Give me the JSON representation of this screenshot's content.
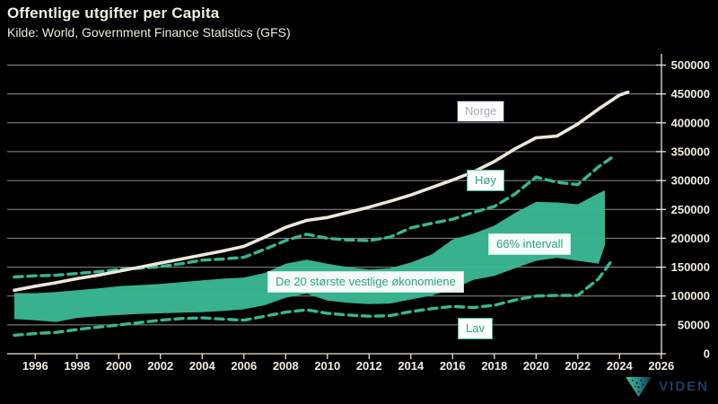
{
  "header": {
    "title": "Offentlige utgifter per Capita",
    "subtitle": "Kilde: World, Government Finance Statistics (GFS)"
  },
  "logo": {
    "text": "VIDEN"
  },
  "chart_data": {
    "type": "line",
    "title": "Offentlige utgifter per Capita",
    "source": "Kilde: World, Government Finance Statistics (GFS)",
    "grid": true,
    "legend_position": "inline-annotations",
    "x_axis": {
      "ticks": [
        1996,
        1998,
        2000,
        2002,
        2004,
        2006,
        2008,
        2010,
        2012,
        2014,
        2016,
        2018,
        2020,
        2022,
        2024,
        2026
      ]
    },
    "y_axis": {
      "ticks": [
        0,
        50000,
        100000,
        150000,
        200000,
        250000,
        300000,
        350000,
        400000,
        450000,
        500000
      ],
      "range": [
        0,
        500000
      ]
    },
    "colors": {
      "background": "#000000",
      "grid": "#8f8f8f",
      "axis": "#e9e5d7",
      "text": "#f0ece0",
      "norge_line": "#ece7d9",
      "band": "#3abb96",
      "dashed": "#35b892",
      "label_navy_border": "#363c59",
      "label_teal_text": "#2aa183",
      "logo_navy": "#1f3e63"
    },
    "annotations": [
      {
        "id": "norge",
        "text": "Norge"
      },
      {
        "id": "hoy",
        "text": "Høy"
      },
      {
        "id": "interval",
        "text": "66% intervall"
      },
      {
        "id": "economies",
        "text": "De 20 største vestlige økonomiene"
      },
      {
        "id": "lav",
        "text": "Lav"
      }
    ],
    "band": {
      "name": "66% intervall",
      "years": [
        1995,
        1996,
        1997,
        1998,
        1999,
        2000,
        2001,
        2002,
        2003,
        2004,
        2005,
        2006,
        2007,
        2008,
        2009,
        2010,
        2011,
        2012,
        2013,
        2014,
        2015,
        2016,
        2017,
        2018,
        2019,
        2020,
        2021,
        2022,
        2023,
        2023.3
      ],
      "top": [
        105000,
        105000,
        107000,
        110000,
        113000,
        117000,
        119000,
        121000,
        124000,
        127000,
        130000,
        132000,
        140000,
        156000,
        163000,
        156000,
        150000,
        146000,
        148000,
        158000,
        172000,
        198000,
        208000,
        222000,
        244000,
        263000,
        262000,
        259000,
        278000,
        283000
      ],
      "bottom": [
        60000,
        58000,
        55000,
        62000,
        65000,
        67000,
        69000,
        70000,
        71000,
        72000,
        74000,
        77000,
        84000,
        97000,
        104000,
        92000,
        88000,
        86000,
        87000,
        94000,
        101000,
        112000,
        128000,
        135000,
        148000,
        161000,
        166000,
        161000,
        156000,
        188000
      ]
    },
    "series": [
      {
        "id": "hoy",
        "name": "Høy",
        "style": "dashed",
        "dash": "9 6",
        "width": 3.4,
        "color": "#35b892",
        "years": [
          1995,
          1996,
          1997,
          1998,
          1999,
          2000,
          2001,
          2002,
          2003,
          2004,
          2005,
          2006,
          2007,
          2008,
          2009,
          2010,
          2011,
          2012,
          2013,
          2014,
          2015,
          2016,
          2017,
          2018,
          2019,
          2020,
          2021,
          2022,
          2023,
          2023.6
        ],
        "values": [
          133000,
          135000,
          136000,
          139000,
          142000,
          146000,
          148000,
          151000,
          156000,
          162000,
          164000,
          167000,
          181000,
          196000,
          207000,
          200000,
          197000,
          196000,
          202000,
          218000,
          226000,
          233000,
          245000,
          255000,
          277000,
          306000,
          297000,
          293000,
          324000,
          339000
        ]
      },
      {
        "id": "lav",
        "name": "Lav",
        "style": "dashed",
        "dash": "9 6",
        "width": 3.4,
        "color": "#35b892",
        "years": [
          1995,
          1996,
          1997,
          1998,
          1999,
          2000,
          2001,
          2002,
          2003,
          2004,
          2005,
          2006,
          2007,
          2008,
          2009,
          2010,
          2011,
          2012,
          2013,
          2014,
          2015,
          2016,
          2017,
          2018,
          2019,
          2020,
          2021,
          2022,
          2023,
          2023.6
        ],
        "values": [
          32000,
          35000,
          37000,
          42000,
          46000,
          50000,
          54000,
          58000,
          61000,
          62000,
          60000,
          58000,
          65000,
          72000,
          76000,
          70000,
          67000,
          65000,
          66000,
          73000,
          78000,
          82000,
          80000,
          84000,
          93000,
          100000,
          101000,
          101000,
          130000,
          160000
        ]
      },
      {
        "id": "norge",
        "name": "Norge",
        "style": "solid",
        "dash": "",
        "width": 3.6,
        "color": "#ece7d9",
        "years": [
          1995,
          1996,
          1997,
          1998,
          1999,
          2000,
          2001,
          2002,
          2003,
          2004,
          2005,
          2006,
          2007,
          2008,
          2009,
          2010,
          2011,
          2012,
          2013,
          2014,
          2015,
          2016,
          2017,
          2018,
          2019,
          2020,
          2021,
          2022,
          2023,
          2024,
          2024.4
        ],
        "values": [
          110000,
          117000,
          123000,
          130000,
          136000,
          143000,
          150000,
          157000,
          164000,
          171000,
          178000,
          186000,
          202000,
          219000,
          231000,
          236000,
          245000,
          254000,
          264000,
          275000,
          288000,
          301000,
          315000,
          333000,
          355000,
          374000,
          377000,
          398000,
          424000,
          448000,
          453000
        ]
      }
    ]
  }
}
